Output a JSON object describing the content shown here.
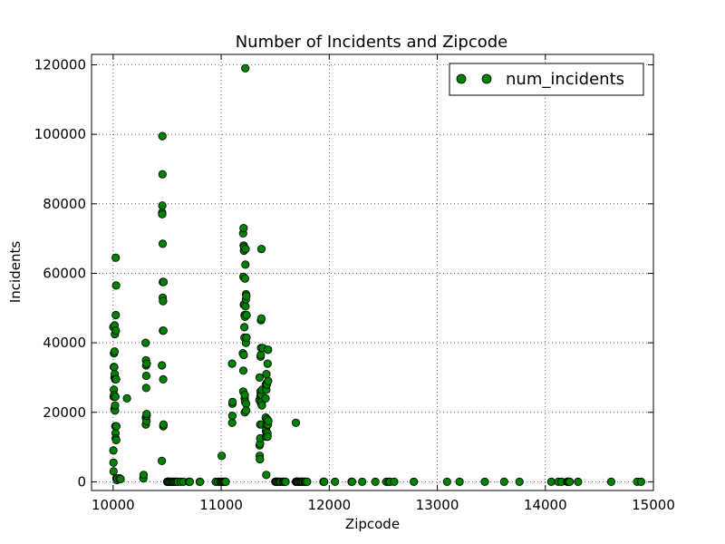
{
  "chart_data": {
    "type": "scatter",
    "title": "Number of Incidents and Zipcode",
    "xlabel": "Zipcode",
    "ylabel": "Incidents",
    "xlim": [
      9800,
      15000
    ],
    "ylim": [
      -2500,
      123000
    ],
    "xticks": [
      10000,
      11000,
      12000,
      13000,
      14000,
      15000
    ],
    "yticks": [
      0,
      20000,
      40000,
      60000,
      80000,
      100000,
      120000
    ],
    "grid": true,
    "legend_position": "top-right",
    "series": [
      {
        "name": "num_incidents",
        "color": "#008000",
        "marker": "circle",
        "points": [
          [
            10001,
            44500
          ],
          [
            10002,
            9000
          ],
          [
            10003,
            5500
          ],
          [
            10004,
            3000
          ],
          [
            10005,
            24500
          ],
          [
            10006,
            33000
          ],
          [
            10007,
            26500
          ],
          [
            10008,
            37000
          ],
          [
            10009,
            25000
          ],
          [
            10010,
            33000
          ],
          [
            10011,
            21000
          ],
          [
            10012,
            30000
          ],
          [
            10013,
            37500
          ],
          [
            10014,
            45000
          ],
          [
            10015,
            31000
          ],
          [
            10016,
            42500
          ],
          [
            10017,
            20500
          ],
          [
            10018,
            22000
          ],
          [
            10019,
            29500
          ],
          [
            10020,
            16000
          ],
          [
            10021,
            24500
          ],
          [
            10022,
            14000
          ],
          [
            10023,
            12500
          ],
          [
            10024,
            64500
          ],
          [
            10025,
            48000
          ],
          [
            10026,
            43500
          ],
          [
            10027,
            56500
          ],
          [
            10028,
            29500
          ],
          [
            10029,
            12000
          ],
          [
            10030,
            16000
          ],
          [
            10031,
            1000
          ],
          [
            10032,
            1000
          ],
          [
            10033,
            1000
          ],
          [
            10034,
            1000
          ],
          [
            10035,
            500
          ],
          [
            10040,
            1000
          ],
          [
            10060,
            1000
          ],
          [
            10069,
            800
          ],
          [
            10128,
            24000
          ],
          [
            10280,
            1000
          ],
          [
            10282,
            2000
          ],
          [
            10301,
            40000
          ],
          [
            10302,
            16500
          ],
          [
            10303,
            18500
          ],
          [
            10304,
            35000
          ],
          [
            10305,
            33500
          ],
          [
            10306,
            27000
          ],
          [
            10307,
            30500
          ],
          [
            10308,
            17500
          ],
          [
            10309,
            19000
          ],
          [
            10310,
            19500
          ],
          [
            10312,
            34000
          ],
          [
            10451,
            6000
          ],
          [
            10452,
            33500
          ],
          [
            10453,
            77500
          ],
          [
            10454,
            77000
          ],
          [
            10455,
            79500
          ],
          [
            10456,
            99500
          ],
          [
            10457,
            88500
          ],
          [
            10458,
            68500
          ],
          [
            10459,
            53000
          ],
          [
            10460,
            57500
          ],
          [
            10461,
            43500
          ],
          [
            10462,
            52000
          ],
          [
            10463,
            29500
          ],
          [
            10464,
            16000
          ],
          [
            10465,
            43500
          ],
          [
            10466,
            16500
          ],
          [
            10467,
            57500
          ],
          [
            10501,
            0
          ],
          [
            10502,
            0
          ],
          [
            10503,
            0
          ],
          [
            10504,
            0
          ],
          [
            10505,
            0
          ],
          [
            10506,
            0
          ],
          [
            10507,
            0
          ],
          [
            10510,
            0
          ],
          [
            10520,
            0
          ],
          [
            10530,
            0
          ],
          [
            10540,
            0
          ],
          [
            10550,
            0
          ],
          [
            10560,
            0
          ],
          [
            10570,
            0
          ],
          [
            10580,
            0
          ],
          [
            10590,
            0
          ],
          [
            10600,
            0
          ],
          [
            10625,
            0
          ],
          [
            10650,
            0
          ],
          [
            10700,
            0
          ],
          [
            10710,
            0
          ],
          [
            10801,
            0
          ],
          [
            10805,
            0
          ],
          [
            10950,
            0
          ],
          [
            10970,
            0
          ],
          [
            10990,
            0
          ],
          [
            11001,
            0
          ],
          [
            11004,
            7500
          ],
          [
            11010,
            0
          ],
          [
            11020,
            0
          ],
          [
            11030,
            0
          ],
          [
            11040,
            0
          ],
          [
            11042,
            0
          ],
          [
            11101,
            34000
          ],
          [
            11102,
            17000
          ],
          [
            11103,
            19000
          ],
          [
            11104,
            22500
          ],
          [
            11105,
            23000
          ],
          [
            11201,
            37000
          ],
          [
            11203,
            71500
          ],
          [
            11204,
            26000
          ],
          [
            11205,
            32000
          ],
          [
            11206,
            59000
          ],
          [
            11207,
            73000
          ],
          [
            11208,
            68000
          ],
          [
            11209,
            36500
          ],
          [
            11210,
            51000
          ],
          [
            11211,
            66500
          ],
          [
            11212,
            67500
          ],
          [
            11213,
            51000
          ],
          [
            11214,
            44500
          ],
          [
            11215,
            41500
          ],
          [
            11216,
            48000
          ],
          [
            11217,
            24000
          ],
          [
            11218,
            25000
          ],
          [
            11219,
            20000
          ],
          [
            11220,
            47500
          ],
          [
            11221,
            58500
          ],
          [
            11222,
            23000
          ],
          [
            11223,
            119000
          ],
          [
            11224,
            62500
          ],
          [
            11225,
            50500
          ],
          [
            11226,
            67000
          ],
          [
            11228,
            52500
          ],
          [
            11229,
            40000
          ],
          [
            11230,
            54000
          ],
          [
            11231,
            22500
          ],
          [
            11232,
            20500
          ],
          [
            11233,
            53500
          ],
          [
            11234,
            41500
          ],
          [
            11235,
            48000
          ],
          [
            11354,
            23500
          ],
          [
            11355,
            30000
          ],
          [
            11356,
            10500
          ],
          [
            11357,
            7500
          ],
          [
            11358,
            6500
          ],
          [
            11360,
            11000
          ],
          [
            11361,
            12500
          ],
          [
            11362,
            16500
          ],
          [
            11363,
            24500
          ],
          [
            11364,
            26000
          ],
          [
            11365,
            36000
          ],
          [
            11366,
            25000
          ],
          [
            11367,
            36500
          ],
          [
            11368,
            46500
          ],
          [
            11369,
            38500
          ],
          [
            11370,
            22500
          ],
          [
            11372,
            47000
          ],
          [
            11373,
            67000
          ],
          [
            11374,
            25000
          ],
          [
            11375,
            23000
          ],
          [
            11377,
            22000
          ],
          [
            11378,
            16500
          ],
          [
            11379,
            26500
          ],
          [
            11385,
            38500
          ],
          [
            11411,
            24000
          ],
          [
            11412,
            18500
          ],
          [
            11413,
            28000
          ],
          [
            11414,
            13000
          ],
          [
            11415,
            14500
          ],
          [
            11416,
            15500
          ],
          [
            11417,
            2000
          ],
          [
            11418,
            26500
          ],
          [
            11419,
            31000
          ],
          [
            11420,
            16500
          ],
          [
            11421,
            13500
          ],
          [
            11422,
            28500
          ],
          [
            11423,
            28000
          ],
          [
            11426,
            18000
          ],
          [
            11427,
            14000
          ],
          [
            11428,
            14000
          ],
          [
            11429,
            13000
          ],
          [
            11430,
            34000
          ],
          [
            11432,
            38000
          ],
          [
            11433,
            16500
          ],
          [
            11434,
            38000
          ],
          [
            11435,
            29000
          ],
          [
            11436,
            17500
          ],
          [
            11501,
            0
          ],
          [
            11507,
            0
          ],
          [
            11510,
            0
          ],
          [
            11520,
            0
          ],
          [
            11530,
            0
          ],
          [
            11542,
            0
          ],
          [
            11550,
            0
          ],
          [
            11570,
            0
          ],
          [
            11580,
            0
          ],
          [
            11590,
            0
          ],
          [
            11596,
            0
          ],
          [
            11691,
            17000
          ],
          [
            11692,
            0
          ],
          [
            11693,
            0
          ],
          [
            11694,
            0
          ],
          [
            11697,
            0
          ],
          [
            11701,
            0
          ],
          [
            11703,
            0
          ],
          [
            11704,
            0
          ],
          [
            11710,
            0
          ],
          [
            11717,
            0
          ],
          [
            11725,
            0
          ],
          [
            11735,
            0
          ],
          [
            11743,
            0
          ],
          [
            11746,
            0
          ],
          [
            11756,
            0
          ],
          [
            11758,
            0
          ],
          [
            11772,
            0
          ],
          [
            11778,
            0
          ],
          [
            11783,
            0
          ],
          [
            11795,
            0
          ],
          [
            11946,
            0
          ],
          [
            11953,
            0
          ],
          [
            12054,
            0
          ],
          [
            12206,
            0
          ],
          [
            12211,
            0
          ],
          [
            12305,
            0
          ],
          [
            12427,
            0
          ],
          [
            12528,
            0
          ],
          [
            12550,
            0
          ],
          [
            12563,
            0
          ],
          [
            12601,
            0
          ],
          [
            12783,
            0
          ],
          [
            13090,
            0
          ],
          [
            13206,
            0
          ],
          [
            13440,
            0
          ],
          [
            13619,
            0
          ],
          [
            13760,
            0
          ],
          [
            14055,
            0
          ],
          [
            14120,
            0
          ],
          [
            14150,
            0
          ],
          [
            14202,
            0
          ],
          [
            14209,
            0
          ],
          [
            14215,
            0
          ],
          [
            14226,
            0
          ],
          [
            14303,
            0
          ],
          [
            14609,
            0
          ],
          [
            14850,
            0
          ],
          [
            14886,
            0
          ]
        ]
      }
    ]
  }
}
